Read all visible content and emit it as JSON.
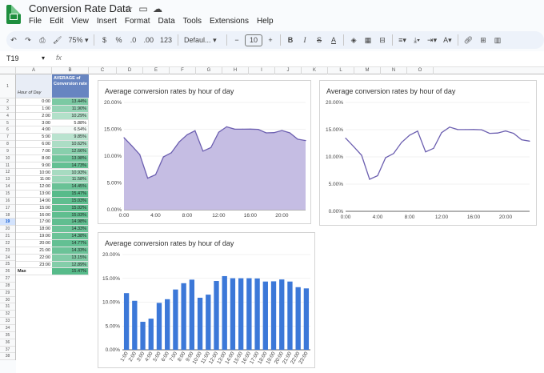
{
  "app": {
    "title": "Conversion Rate Data"
  },
  "menu": [
    "File",
    "Edit",
    "View",
    "Insert",
    "Format",
    "Data",
    "Tools",
    "Extensions",
    "Help"
  ],
  "toolbar": {
    "zoom": "75%",
    "currency": "$",
    "percent": "%",
    "dec_decrease": ".0",
    "dec_increase": ".00",
    "number_format": "123",
    "font": "Defaul...",
    "font_size": "10"
  },
  "formula_bar": {
    "cell_ref": "T19",
    "fx": "fx"
  },
  "columns": [
    "A",
    "B",
    "C",
    "D",
    "E",
    "F",
    "G",
    "H",
    "I",
    "J",
    "K",
    "L",
    "M",
    "N",
    "O"
  ],
  "rows": [
    "1",
    "2",
    "3",
    "4",
    "5",
    "6",
    "7",
    "8",
    "9",
    "10",
    "11",
    "12",
    "13",
    "14",
    "15",
    "16",
    "17",
    "18",
    "19",
    "20",
    "21",
    "22",
    "23",
    "24",
    "25",
    "26",
    "27",
    "28",
    "29",
    "30",
    "31",
    "32",
    "33",
    "34",
    "35",
    "36",
    "37",
    "38"
  ],
  "sheet": {
    "col_a_header": "Hour of Day",
    "col_b_header": "AVERAGE of Conversion rate",
    "hours": [
      "0:00",
      "1:00",
      "2:00",
      "3:00",
      "4:00",
      "5:00",
      "6:00",
      "7:00",
      "8:00",
      "9:00",
      "10:00",
      "11:00",
      "12:00",
      "13:00",
      "14:00",
      "15:00",
      "16:00",
      "17:00",
      "18:00",
      "19:00",
      "20:00",
      "21:00",
      "22:00",
      "23:00"
    ],
    "rates": [
      "13.44%",
      "11.90%",
      "10.29%",
      "5.88%",
      "6.54%",
      "9.85%",
      "10.62%",
      "12.66%",
      "13.98%",
      "14.73%",
      "10.93%",
      "11.58%",
      "14.45%",
      "15.47%",
      "15.03%",
      "15.02%",
      "15.03%",
      "14.98%",
      "14.33%",
      "14.38%",
      "14.77%",
      "14.33%",
      "13.15%",
      "12.89%"
    ],
    "max_label": "Max",
    "max_value": "15.47%"
  },
  "colors": {
    "area": "#c5bde3",
    "line": "#6c5fb0",
    "bar": "#3c78d8",
    "accent": "#1e8e3e"
  },
  "charts": {
    "area_title": "Average conversion rates by hour of day",
    "line_title": "Average conversion rates by hour of day",
    "bar_title": "Average conversion rates by hour of day"
  },
  "chart_data": [
    {
      "type": "area",
      "title": "Average conversion rates by hour of day",
      "categories": [
        "0:00",
        "1:00",
        "2:00",
        "3:00",
        "4:00",
        "5:00",
        "6:00",
        "7:00",
        "8:00",
        "9:00",
        "10:00",
        "11:00",
        "12:00",
        "13:00",
        "14:00",
        "15:00",
        "16:00",
        "17:00",
        "18:00",
        "19:00",
        "20:00",
        "21:00",
        "22:00",
        "23:00"
      ],
      "values": [
        13.44,
        11.9,
        10.29,
        5.88,
        6.54,
        9.85,
        10.62,
        12.66,
        13.98,
        14.73,
        10.93,
        11.58,
        14.45,
        15.47,
        15.03,
        15.02,
        15.03,
        14.98,
        14.33,
        14.38,
        14.77,
        14.33,
        13.15,
        12.89
      ],
      "x_tick_labels": [
        "0:00",
        "4:00",
        "8:00",
        "12:00",
        "16:00",
        "20:00"
      ],
      "y_tick_labels": [
        "0.00%",
        "5.00%",
        "10.00%",
        "15.00%",
        "20.00%"
      ],
      "ylim": [
        0,
        20
      ]
    },
    {
      "type": "line",
      "title": "Average conversion rates by hour of day",
      "categories": [
        "0:00",
        "1:00",
        "2:00",
        "3:00",
        "4:00",
        "5:00",
        "6:00",
        "7:00",
        "8:00",
        "9:00",
        "10:00",
        "11:00",
        "12:00",
        "13:00",
        "14:00",
        "15:00",
        "16:00",
        "17:00",
        "18:00",
        "19:00",
        "20:00",
        "21:00",
        "22:00",
        "23:00"
      ],
      "values": [
        13.44,
        11.9,
        10.29,
        5.88,
        6.54,
        9.85,
        10.62,
        12.66,
        13.98,
        14.73,
        10.93,
        11.58,
        14.45,
        15.47,
        15.03,
        15.02,
        15.03,
        14.98,
        14.33,
        14.38,
        14.77,
        14.33,
        13.15,
        12.89
      ],
      "x_tick_labels": [
        "0:00",
        "4:00",
        "8:00",
        "12:00",
        "16:00",
        "20:00"
      ],
      "y_tick_labels": [
        "0.00%",
        "5.00%",
        "10.00%",
        "15.00%",
        "20.00%"
      ],
      "ylim": [
        0,
        20
      ]
    },
    {
      "type": "bar",
      "title": "Average conversion rates by hour of day",
      "categories": [
        "1:00",
        "2:00",
        "3:00",
        "4:00",
        "5:00",
        "6:00",
        "7:00",
        "8:00",
        "9:00",
        "10:00",
        "11:00",
        "12:00",
        "13:00",
        "14:00",
        "15:00",
        "16:00",
        "17:00",
        "18:00",
        "19:00",
        "20:00",
        "21:00",
        "22:00",
        "23:00"
      ],
      "values": [
        11.9,
        10.29,
        5.88,
        6.54,
        9.85,
        10.62,
        12.66,
        13.98,
        14.73,
        10.93,
        11.58,
        14.45,
        15.47,
        15.03,
        15.02,
        15.03,
        14.98,
        14.33,
        14.38,
        14.77,
        14.33,
        13.15,
        12.89
      ],
      "y_tick_labels": [
        "0.00%",
        "5.00%",
        "10.00%",
        "15.00%",
        "20.00%"
      ],
      "ylim": [
        0,
        20
      ]
    }
  ]
}
